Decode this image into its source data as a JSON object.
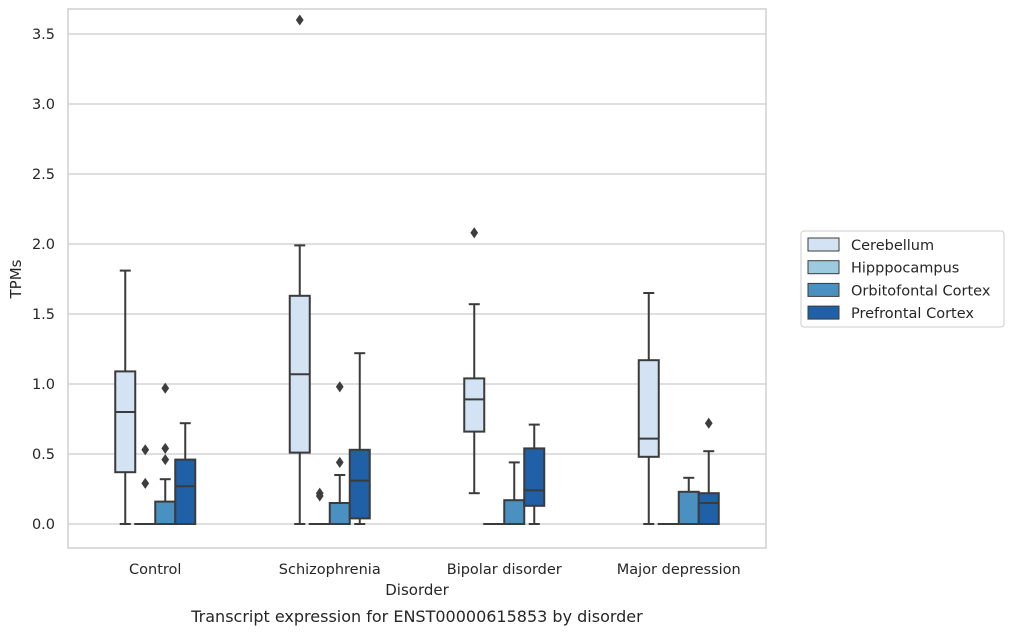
{
  "chart_data": {
    "type": "box",
    "title": "Transcript expression for ENST00000615853 by disorder",
    "xlabel": "Disorder",
    "ylabel": "TPMs",
    "ylim": [
      -0.18,
      3.78
    ],
    "yticks": [
      0.0,
      0.5,
      1.0,
      1.5,
      2.0,
      2.5,
      3.0,
      3.5
    ],
    "ytick_labels": [
      "0.0",
      "0.5",
      "1.0",
      "1.5",
      "2.0",
      "2.5",
      "3.0",
      "3.5"
    ],
    "categories": [
      "Control",
      "Schizophrenia",
      "Bipolar disorder",
      "Major depression"
    ],
    "grid": "horizontal",
    "legend_position": "right",
    "series": [
      {
        "name": "Cerebellum",
        "color": "#d3e3f3",
        "boxes": [
          {
            "whislo": 0.0,
            "q1": 0.37,
            "median": 0.8,
            "q3": 1.09,
            "whishi": 1.81,
            "fliers": []
          },
          {
            "whislo": 0.0,
            "q1": 0.51,
            "median": 1.07,
            "q3": 1.63,
            "whishi": 1.99,
            "fliers": [
              3.6
            ]
          },
          {
            "whislo": 0.22,
            "q1": 0.66,
            "median": 0.89,
            "q3": 1.04,
            "whishi": 1.57,
            "fliers": [
              2.08
            ]
          },
          {
            "whislo": 0.0,
            "q1": 0.48,
            "median": 0.61,
            "q3": 1.17,
            "whishi": 1.65,
            "fliers": []
          }
        ]
      },
      {
        "name": "Hipppocampus",
        "color": "#9ecae1",
        "boxes": [
          {
            "whislo": 0.0,
            "q1": 0.0,
            "median": 0.0,
            "q3": 0.0,
            "whishi": 0.0,
            "fliers": [
              0.53,
              0.29
            ]
          },
          {
            "whislo": 0.0,
            "q1": 0.0,
            "median": 0.0,
            "q3": 0.0,
            "whishi": 0.0,
            "fliers": [
              0.22,
              0.2
            ]
          },
          {
            "whislo": 0.0,
            "q1": 0.0,
            "median": 0.0,
            "q3": 0.0,
            "whishi": 0.0,
            "fliers": []
          },
          {
            "whislo": 0.0,
            "q1": 0.0,
            "median": 0.0,
            "q3": 0.0,
            "whishi": 0.0,
            "fliers": []
          }
        ]
      },
      {
        "name": "Orbitofontal Cortex",
        "color": "#4a91c2",
        "boxes": [
          {
            "whislo": 0.0,
            "q1": 0.0,
            "median": 0.0,
            "q3": 0.16,
            "whishi": 0.32,
            "fliers": [
              0.97,
              0.54,
              0.46
            ]
          },
          {
            "whislo": 0.0,
            "q1": 0.0,
            "median": 0.0,
            "q3": 0.15,
            "whishi": 0.35,
            "fliers": [
              0.98,
              0.44
            ]
          },
          {
            "whislo": 0.0,
            "q1": 0.0,
            "median": 0.0,
            "q3": 0.17,
            "whishi": 0.44,
            "fliers": []
          },
          {
            "whislo": 0.0,
            "q1": 0.0,
            "median": 0.0,
            "q3": 0.23,
            "whishi": 0.33,
            "fliers": []
          }
        ]
      },
      {
        "name": "Prefrontal Cortex",
        "color": "#2060a7",
        "boxes": [
          {
            "whislo": 0.0,
            "q1": 0.0,
            "median": 0.27,
            "q3": 0.46,
            "whishi": 0.72,
            "fliers": []
          },
          {
            "whislo": 0.0,
            "q1": 0.04,
            "median": 0.31,
            "q3": 0.53,
            "whishi": 1.22,
            "fliers": []
          },
          {
            "whislo": 0.0,
            "q1": 0.13,
            "median": 0.24,
            "q3": 0.54,
            "whishi": 0.71,
            "fliers": []
          },
          {
            "whislo": 0.0,
            "q1": 0.0,
            "median": 0.15,
            "q3": 0.22,
            "whishi": 0.52,
            "fliers": [
              0.72
            ]
          }
        ]
      }
    ]
  },
  "colors": {
    "box_edge": "#3b3b3b",
    "grid": "#cccccc",
    "frame": "#cccccc",
    "text": "#262626"
  }
}
